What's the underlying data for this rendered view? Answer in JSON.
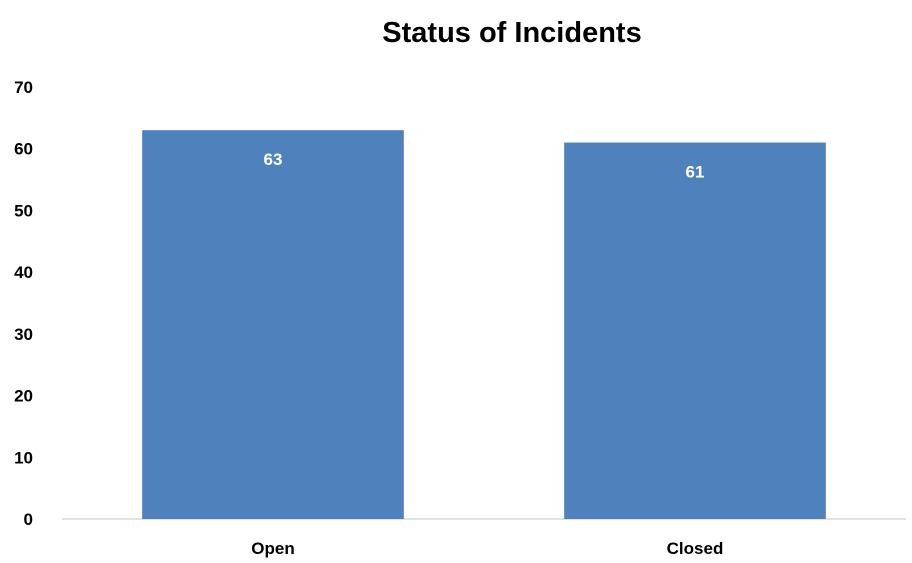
{
  "chart_data": {
    "type": "bar",
    "title": "Status of Incidents",
    "categories": [
      "Open",
      "Closed"
    ],
    "values": [
      63,
      61
    ],
    "data_labels": [
      "63",
      "61"
    ],
    "xlabel": "",
    "ylabel": "",
    "ylim": [
      0,
      70
    ],
    "yticks": [
      "0",
      "10",
      "20",
      "30",
      "40",
      "50",
      "60",
      "70"
    ],
    "grid": false,
    "legend": "none",
    "colors": {
      "bar": "#4f81bd",
      "data_label": "#ffffff",
      "text": "#000000",
      "axis_line": "#d9d9d9"
    }
  }
}
